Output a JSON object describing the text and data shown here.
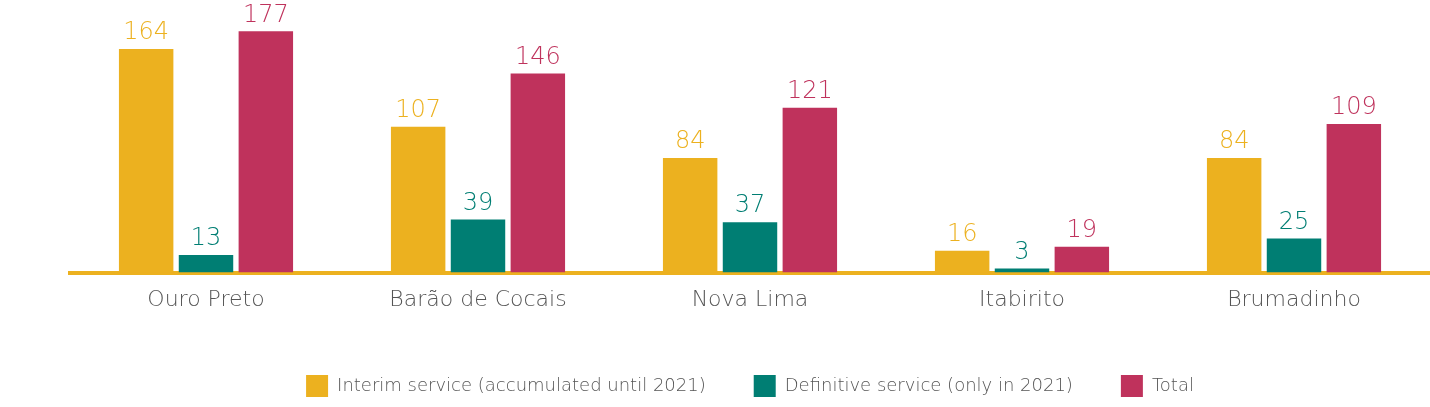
{
  "chart_data": {
    "type": "bar",
    "categories": [
      "Ouro Preto",
      "Barão de Cocais",
      "Nova Lima",
      "Itabirito",
      "Brumadinho"
    ],
    "series": [
      {
        "name": "Interim service (accumulated until 2021)",
        "color": "#ecb11f",
        "values": [
          164,
          107,
          84,
          16,
          84
        ]
      },
      {
        "name": "Definitive service (only in 2021)",
        "color": "#007e73",
        "values": [
          13,
          39,
          37,
          3,
          25
        ]
      },
      {
        "name": "Total",
        "color": "#bf325c",
        "values": [
          177,
          146,
          121,
          19,
          109
        ]
      }
    ],
    "data_labels": true,
    "legend": "bottom",
    "grid": false,
    "tick_labels": "x"
  }
}
